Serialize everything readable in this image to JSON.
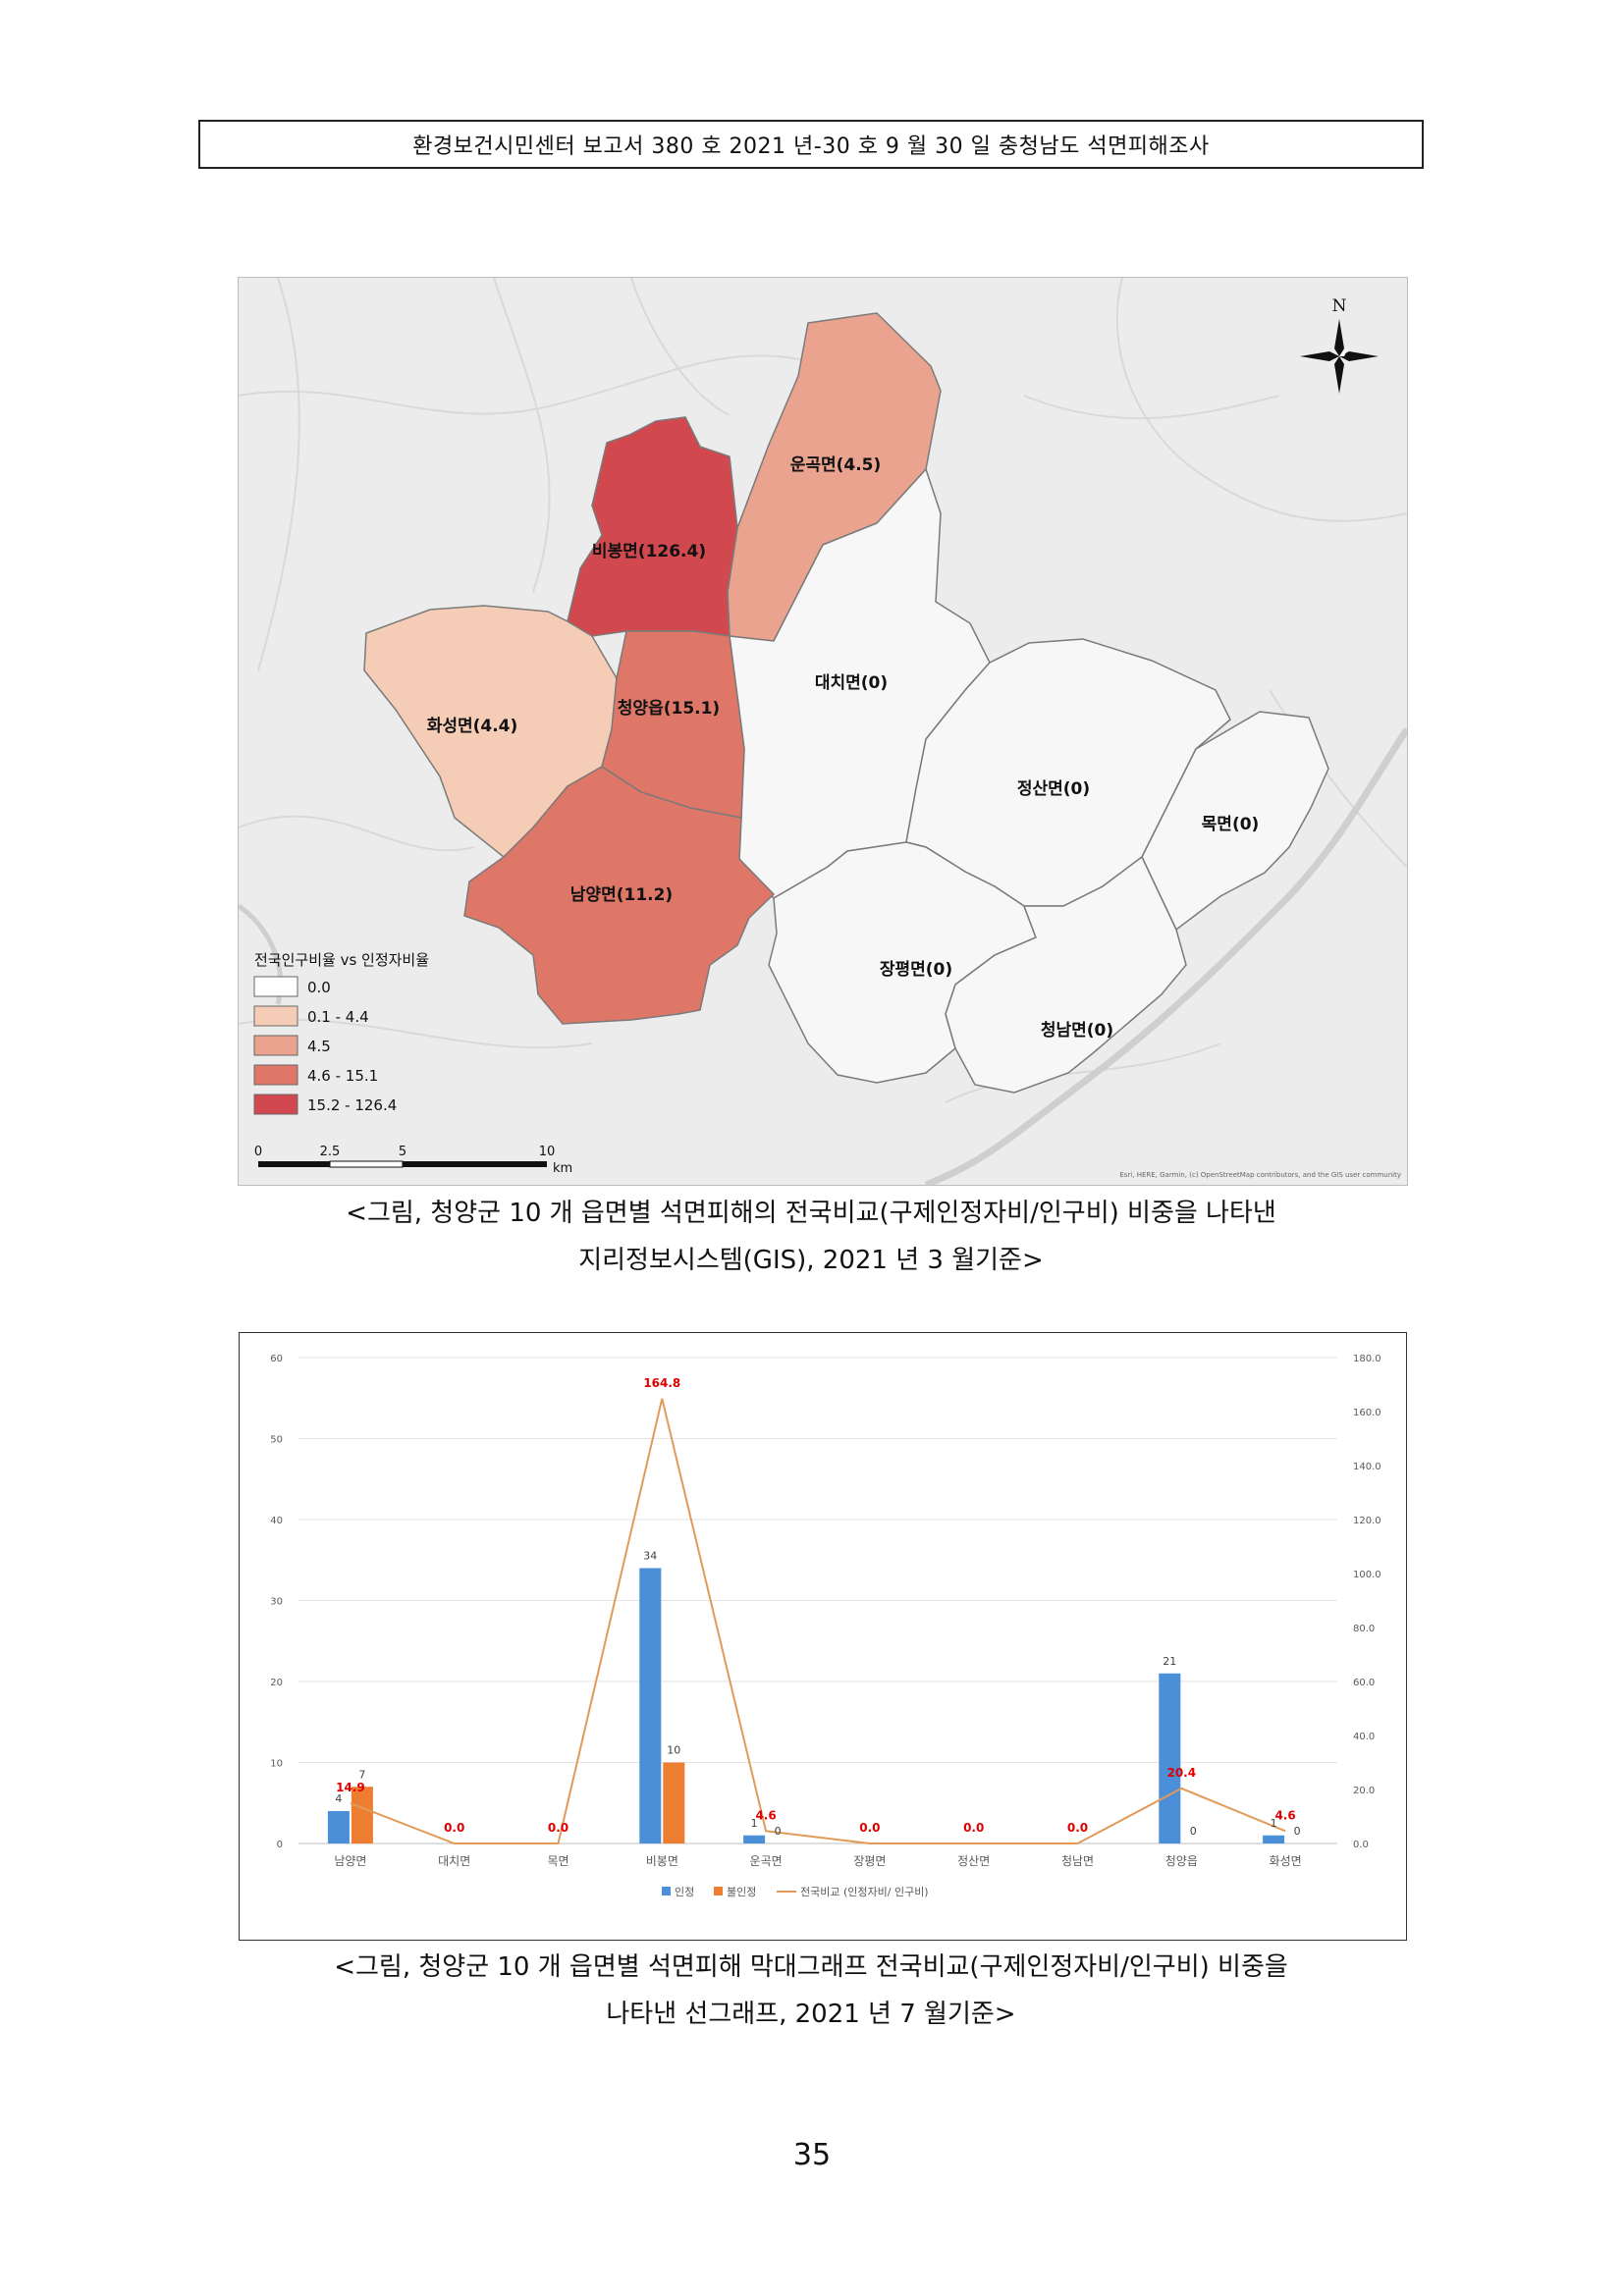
{
  "header": {
    "text": "환경보건시민센터 보고서 380 호 2021 년-30 호 9 월 30 일 충청남도 석면피해조사"
  },
  "map": {
    "north_label": "N",
    "legend_title": "전국인구비율 vs 인정자비율",
    "legend": [
      {
        "label": "0.0",
        "color": "#ffffff"
      },
      {
        "label": "0.1 - 4.4",
        "color": "#f5cdb6"
      },
      {
        "label": "4.5",
        "color": "#eaa38f"
      },
      {
        "label": "4.6 - 15.1",
        "color": "#de7768"
      },
      {
        "label": "15.2 - 126.4",
        "color": "#d2484f"
      }
    ],
    "regions": [
      {
        "label": "운곡면(4.5)",
        "color": "#eaa38f"
      },
      {
        "label": "비봉면(126.4)",
        "color": "#d2484f"
      },
      {
        "label": "대치면(0)",
        "color": "#f7f7f7"
      },
      {
        "label": "화성면(4.4)",
        "color": "#f5cdb6"
      },
      {
        "label": "청양읍(15.1)",
        "color": "#de7768"
      },
      {
        "label": "정산면(0)",
        "color": "#f7f7f7"
      },
      {
        "label": "목면(0)",
        "color": "#f7f7f7"
      },
      {
        "label": "남양면(11.2)",
        "color": "#de7768"
      },
      {
        "label": "장평면(0)",
        "color": "#f7f7f7"
      },
      {
        "label": "청남면(0)",
        "color": "#f7f7f7"
      }
    ],
    "scale": {
      "ticks": [
        "0",
        "2.5",
        "5",
        "10"
      ],
      "unit": "km"
    },
    "attribution": "Esri, HERE, Garmin, (c) OpenStreetMap contributors, and the GIS user community"
  },
  "caption1": {
    "line1": "<그림, 청양군 10 개 읍면별 석면피해의 전국비교(구제인정자비/인구비) 비중을 나타낸",
    "line2": "지리정보시스템(GIS), 2021 년 3 월기준>"
  },
  "chart_data": {
    "type": "bar",
    "categories": [
      "남양면",
      "대치면",
      "목면",
      "비봉면",
      "운곡면",
      "장평면",
      "정산면",
      "청남면",
      "청양읍",
      "화성면"
    ],
    "series": [
      {
        "name": "인정",
        "type": "bar",
        "axis": "left",
        "color": "#4a8fd8",
        "values": [
          4,
          0,
          0,
          34,
          1,
          0,
          0,
          0,
          21,
          1
        ]
      },
      {
        "name": "불인정",
        "type": "bar",
        "axis": "left",
        "color": "#ed7d31",
        "values": [
          7,
          0,
          0,
          10,
          0,
          0,
          0,
          0,
          0,
          0
        ]
      },
      {
        "name": "전국비교 (인정자비/ 인구비)",
        "type": "line",
        "axis": "right",
        "color": "#e19a57",
        "values": [
          14.9,
          0.0,
          0.0,
          164.8,
          4.6,
          0.0,
          0.0,
          0.0,
          20.4,
          4.6
        ]
      }
    ],
    "bar_value_labels": [
      [
        "4",
        "",
        "",
        "34",
        "1",
        "",
        "",
        "",
        "21",
        "1"
      ],
      [
        "7",
        "",
        "",
        "10",
        "0",
        "",
        "",
        "",
        "0",
        "0"
      ]
    ],
    "line_value_labels": [
      "14.9",
      "0.0",
      "0.0",
      "164.8",
      "4.6",
      "0.0",
      "0.0",
      "0.0",
      "20.4",
      "4.6"
    ],
    "y_left": {
      "range": [
        0,
        60
      ],
      "ticks": [
        "0",
        "10",
        "20",
        "30",
        "40",
        "50",
        "60"
      ]
    },
    "y_right": {
      "range": [
        0,
        180
      ],
      "ticks": [
        "0.0",
        "20.0",
        "40.0",
        "60.0",
        "80.0",
        "100.0",
        "120.0",
        "140.0",
        "160.0",
        "180.0"
      ]
    },
    "grid": true,
    "legend_position": "bottom"
  },
  "caption2": {
    "line1": "<그림, 청양군 10 개 읍면별 석면피해 막대그래프 전국비교(구제인정자비/인구비) 비중을",
    "line2": "나타낸 선그래프, 2021 년 7 월기준>"
  },
  "page_number": "35"
}
